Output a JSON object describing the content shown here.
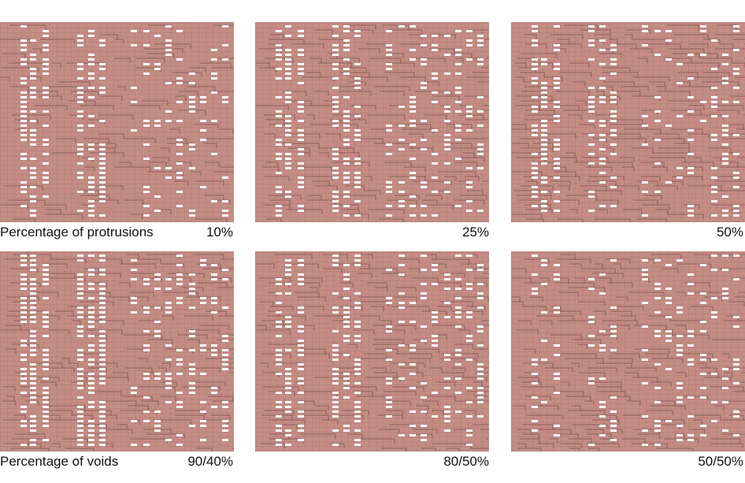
{
  "rows": [
    {
      "label": "Percentage of protrusions",
      "panels": [
        {
          "value_label": "10%"
        },
        {
          "value_label": "25%"
        },
        {
          "value_label": "50%"
        }
      ]
    },
    {
      "label": "Percentage of voids",
      "panels": [
        {
          "value_label": "90/40%"
        },
        {
          "value_label": "80/50%"
        },
        {
          "value_label": "50/50%"
        }
      ]
    }
  ],
  "colors": {
    "brick": "#c48d84",
    "void": "#ffffff",
    "shadow": "#5a3c38",
    "text": "#111111"
  }
}
